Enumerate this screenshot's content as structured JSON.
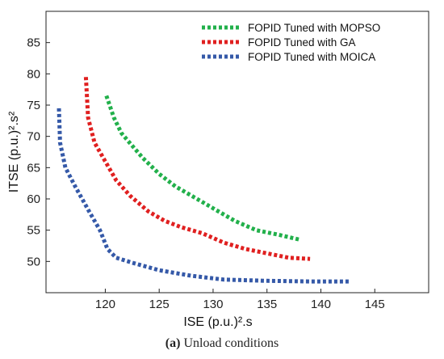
{
  "chart_data": {
    "type": "line",
    "xlabel": "ISE (p.u.)².s",
    "ylabel": "ITSE (p.u.)².s²",
    "xlim": [
      114.5,
      150
    ],
    "ylim": [
      45,
      90
    ],
    "xticks": [
      120,
      125,
      130,
      135,
      140,
      145
    ],
    "yticks": [
      50,
      55,
      60,
      65,
      70,
      75,
      80,
      85
    ],
    "grid": false,
    "legend_position": "top-right",
    "series": [
      {
        "name": "FOPID Tuned with MOPSO",
        "color": "#22b04b",
        "x": [
          120.1,
          120.8,
          121.5,
          122.5,
          123.5,
          125,
          126.5,
          128,
          130,
          132,
          134,
          136,
          138
        ],
        "y": [
          76.5,
          73,
          70.5,
          68.5,
          66.5,
          64,
          62,
          60.5,
          58.5,
          56.5,
          55,
          54.3,
          53.5
        ]
      },
      {
        "name": "FOPID Tuned with GA",
        "color": "#e02020",
        "x": [
          118.2,
          118.4,
          119,
          120,
          121,
          122.3,
          124,
          125.5,
          127,
          129,
          131,
          133,
          135,
          137,
          139
        ],
        "y": [
          79.5,
          73,
          69,
          66,
          63,
          60.5,
          58,
          56.5,
          55.5,
          54.5,
          53,
          52,
          51.3,
          50.6,
          50.4
        ]
      },
      {
        "name": "FOPID Tuned with MOICA",
        "color": "#3559a8",
        "x": [
          115.7,
          115.8,
          116.3,
          117.2,
          118.5,
          119.5,
          120.2,
          121,
          122.5,
          125,
          128,
          131,
          135,
          139,
          142.6
        ],
        "y": [
          74.5,
          69,
          65,
          62,
          58,
          55,
          52,
          50.6,
          49.8,
          48.6,
          47.7,
          47.1,
          46.9,
          46.8,
          46.8
        ]
      }
    ]
  },
  "caption": {
    "label": "(a)",
    "text": " Unload conditions"
  }
}
